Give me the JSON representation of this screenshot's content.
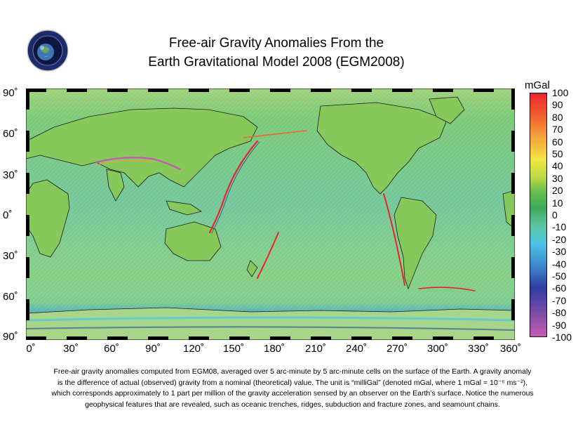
{
  "title": {
    "line1": "Free-air Gravity Anomalies From the",
    "line2": "Earth Gravitational Model 2008 (EGM2008)"
  },
  "logo": {
    "icon": "agency-seal-globe-icon"
  },
  "map": {
    "lat_labels": [
      "90˚",
      "60˚",
      "30˚",
      "0˚",
      "30˚",
      "60˚",
      "90˚"
    ],
    "lon_labels": [
      "0˚",
      "30˚",
      "60˚",
      "90˚",
      "120˚",
      "150˚",
      "180˚",
      "210˚",
      "240˚",
      "270˚",
      "300˚",
      "330˚",
      "360˚"
    ]
  },
  "colorbar": {
    "unit": "mGal",
    "ticks": [
      "100",
      "90",
      "80",
      "70",
      "60",
      "50",
      "40",
      "30",
      "20",
      "10",
      "0",
      "-10",
      "-20",
      "-30",
      "-40",
      "-50",
      "-60",
      "-70",
      "-80",
      "-90",
      "-100"
    ],
    "colors": {
      "top": "#e8262a",
      "red_orange": "#f2662e",
      "orange": "#f59b3b",
      "yellow": "#f2e640",
      "yellow_green": "#b8d846",
      "green": "#6cbf4a",
      "dark_green": "#3fa95a",
      "teal": "#5cc6a8",
      "cyan": "#4cc3e6",
      "blue": "#3b7fc9",
      "navy": "#2b3f9e",
      "purple": "#7b4aa7",
      "magenta": "#c45bb0"
    }
  },
  "caption": {
    "line1": "Free-air gravity anomalies computed from EGM08, averaged over 5 arc-minute by 5 arc-minute cells on the surface of the Earth. A gravity anomaly",
    "line2": "is the difference of actual (observed) gravity from a nominal (theoretical) value. The unit is “milliGal” (denoted mGal, where 1 mGal = 10⁻⁵ ms⁻²),",
    "line3": "which corresponds approximately to 1 part per million of the gravity acceleration sensed by an observer on the Earth’s surface. Notice the numerous",
    "line4": "geophysical features that are revealed, such as oceanic trenches, ridges, subduction and fracture zones, and seamount chains."
  }
}
